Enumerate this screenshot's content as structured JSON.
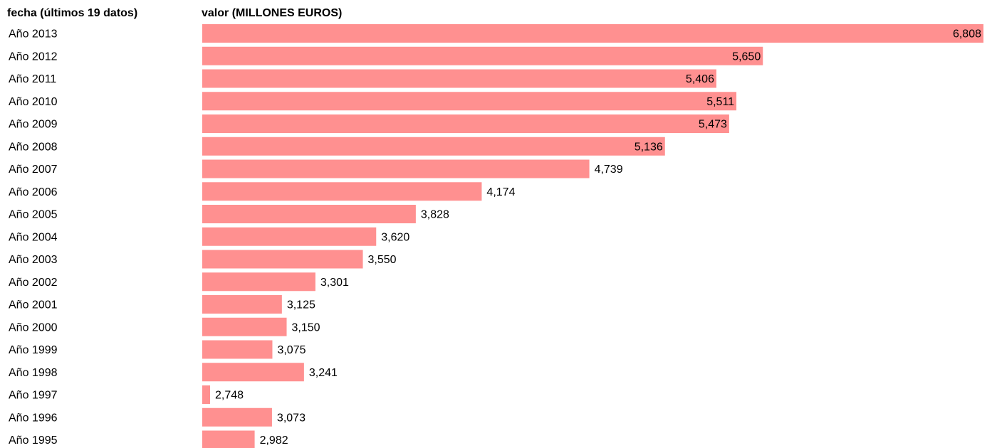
{
  "chart_data": {
    "type": "bar",
    "orientation": "horizontal",
    "category_header": "fecha (últimos 19 datos)",
    "value_header": "valor (MILLONES EUROS)",
    "categories": [
      "Año 2013",
      "Año 2012",
      "Año 2011",
      "Año 2010",
      "Año 2009",
      "Año 2008",
      "Año 2007",
      "Año 2006",
      "Año 2005",
      "Año 2004",
      "Año 2003",
      "Año 2002",
      "Año 2001",
      "Año 2000",
      "Año 1999",
      "Año 1998",
      "Año 1997",
      "Año 1996",
      "Año 1995"
    ],
    "values": [
      6808,
      5650,
      5406,
      5511,
      5473,
      5136,
      4739,
      4174,
      3828,
      3620,
      3550,
      3301,
      3125,
      3150,
      3075,
      3241,
      2748,
      3073,
      2982
    ],
    "labels": [
      "6,808",
      "5,650",
      "5,406",
      "5,511",
      "5,473",
      "5,136",
      "4,739",
      "4,174",
      "3,828",
      "3,620",
      "3,550",
      "3,301",
      "3,125",
      "3,150",
      "3,075",
      "3,241",
      "2,748",
      "3,073",
      "2,982"
    ],
    "bar_color": "#ff9090",
    "grid": false
  }
}
